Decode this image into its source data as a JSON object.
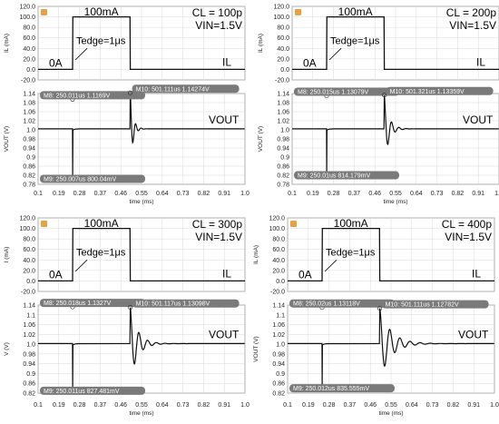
{
  "colors": {
    "plot_bg": "#ffffff",
    "grid": "#d8d8d8",
    "trace": "#111111",
    "marker_box": "#7a7a7a",
    "marker_text": "#ffffff",
    "warn_icon": "#e8a040"
  },
  "icons": {
    "panel_icon": "warning-icon"
  },
  "chart_data": [
    {
      "type": "line",
      "cl_label": "CL = 100p",
      "vin_label": "VIN=1.5V",
      "il": {
        "ylabel": "IL (mA)",
        "yticks": [
          "120.0",
          "100.0",
          "80.0",
          "60.0",
          "40.0",
          "20.0",
          "0.0",
          "-20.0"
        ],
        "ylim": [
          -20,
          120
        ],
        "points": [
          [
            0.1,
            0
          ],
          [
            0.25,
            0
          ],
          [
            0.251,
            100
          ],
          [
            0.5,
            100
          ],
          [
            0.501,
            0
          ],
          [
            1.0,
            0
          ]
        ],
        "annotations": {
          "top": "100mA",
          "zero": "0A",
          "edge": "Tedge=1μs",
          "trace": "IL"
        }
      },
      "vout": {
        "ylabel": "VOUT (V)",
        "yticks": [
          "1.14",
          "1.08",
          "1.06",
          "1.02",
          "1.0",
          "0.98",
          "0.94",
          "0.9",
          "0.86",
          "0.82",
          "0.78"
        ],
        "ylim": [
          0.78,
          1.14
        ],
        "baseline": 1.0,
        "trace_label": "VOUT",
        "drop_min": 0.8,
        "ring": {
          "start": 0.501,
          "amplitude": 0.142,
          "period": 0.024,
          "decay": 0.012
        },
        "markers": [
          {
            "label": "M8: 250.011us 1.1169V",
            "x": 0.25,
            "y": 1.117
          },
          {
            "label": "M10: 501.111us 1.14274V",
            "x": 0.501,
            "y": 1.1427
          },
          {
            "label": "M9: 250.007us 800.04mV",
            "x": 0.25,
            "y": 0.8
          }
        ]
      },
      "time_ticks": [
        "0.1",
        "0.19",
        "0.28",
        "0.37",
        "0.46",
        "0.55",
        "0.64",
        "0.73",
        "0.82",
        "0.91",
        "1.0"
      ],
      "time_label": "time (ms)",
      "xlim": [
        0.1,
        1.0
      ]
    },
    {
      "type": "line",
      "cl_label": "CL = 200p",
      "vin_label": "VIN=1.5V",
      "il": {
        "ylabel": "IL (mA)",
        "yticks": [
          "120.0",
          "100.0",
          "80.0",
          "60.0",
          "40.0",
          "20.0",
          "0.0",
          "-20.0"
        ],
        "ylim": [
          -20,
          120
        ],
        "points": [
          [
            0.1,
            0
          ],
          [
            0.25,
            0
          ],
          [
            0.251,
            100
          ],
          [
            0.5,
            100
          ],
          [
            0.501,
            0
          ],
          [
            1.0,
            0
          ]
        ],
        "annotations": {
          "top": "100mA",
          "zero": "0A",
          "edge": "Tedge=1μs",
          "trace": "IL"
        }
      },
      "vout": {
        "ylabel": "VOUT (V)",
        "yticks": [
          "1.14",
          "1.08",
          "1.06",
          "1.02",
          "1.0",
          "0.98",
          "0.94",
          "0.9",
          "0.86",
          "0.82",
          "0.78"
        ],
        "ylim": [
          0.78,
          1.14
        ],
        "baseline": 1.0,
        "trace_label": "VOUT",
        "drop_min": 0.814,
        "ring": {
          "start": 0.501,
          "amplitude": 0.133,
          "period": 0.032,
          "decay": 0.02
        },
        "markers": [
          {
            "label": "M8: 250.015us 1.13079V",
            "x": 0.25,
            "y": 1.131
          },
          {
            "label": "M10: 501.321us 1.13359V",
            "x": 0.501,
            "y": 1.1336
          },
          {
            "label": "M9: 250.01us 814.179mV",
            "x": 0.25,
            "y": 0.814
          }
        ]
      },
      "time_ticks": [
        "0.1",
        "0.19",
        "0.28",
        "0.37",
        "0.46",
        "0.55",
        "0.64",
        "0.73",
        "0.82",
        "0.91",
        "1.0"
      ],
      "time_label": "time (ms)",
      "xlim": [
        0.1,
        1.0
      ]
    },
    {
      "type": "line",
      "cl_label": "CL = 300p",
      "vin_label": "VIN=1.5V",
      "il": {
        "ylabel": "I (mA)",
        "yticks": [
          "120.0",
          "100.0",
          "80.0",
          "60.0",
          "40.0",
          "20.0",
          "0.0",
          "-20.0"
        ],
        "ylim": [
          -20,
          120
        ],
        "points": [
          [
            0.1,
            0
          ],
          [
            0.25,
            0
          ],
          [
            0.251,
            100
          ],
          [
            0.5,
            100
          ],
          [
            0.501,
            0
          ],
          [
            1.0,
            0
          ]
        ],
        "annotations": {
          "top": "100mA",
          "zero": "0A",
          "edge": "Tedge=1μs",
          "trace": "IL"
        }
      },
      "vout": {
        "ylabel": "V (V)",
        "yticks": [
          "1.14",
          "1.1",
          "1.06",
          "1.02",
          "1.0",
          "0.98",
          "0.94",
          "0.9",
          "0.86",
          "0.82"
        ],
        "ylim": [
          0.82,
          1.14
        ],
        "baseline": 1.0,
        "trace_label": "VOUT",
        "drop_min": 0.827,
        "ring": {
          "start": 0.501,
          "amplitude": 0.131,
          "period": 0.038,
          "decay": 0.032
        },
        "markers": [
          {
            "label": "M8: 250.018us 1.1327V",
            "x": 0.25,
            "y": 1.133
          },
          {
            "label": "M10: 501.117us 1.13098V",
            "x": 0.501,
            "y": 1.131
          },
          {
            "label": "M9: 250.011us 827.481mV",
            "x": 0.25,
            "y": 0.827
          }
        ]
      },
      "time_ticks": [
        "0.1",
        "0.19",
        "0.28",
        "0.37",
        "0.46",
        "0.55",
        "0.64",
        "0.73",
        "0.82",
        "0.91",
        "1.0"
      ],
      "time_label": "time (ms)",
      "xlim": [
        0.1,
        1.0
      ]
    },
    {
      "type": "line",
      "cl_label": "CL = 400p",
      "vin_label": "VIN=1.5V",
      "il": {
        "ylabel": "IL (mA)",
        "yticks": [
          "120.0",
          "100.0",
          "80.0",
          "60.0",
          "40.0",
          "20.0",
          "0.0",
          "-20.0"
        ],
        "ylim": [
          -20,
          120
        ],
        "points": [
          [
            0.1,
            0
          ],
          [
            0.25,
            0
          ],
          [
            0.251,
            100
          ],
          [
            0.5,
            100
          ],
          [
            0.501,
            0
          ],
          [
            1.0,
            0
          ]
        ],
        "annotations": {
          "top": "100mA",
          "zero": "0A",
          "edge": "Tedge=1μs",
          "trace": "IL"
        }
      },
      "vout": {
        "ylabel": "VOUT (V)",
        "yticks": [
          "1.14",
          "1.1",
          "1.06",
          "1.02",
          "1.0",
          "0.98",
          "0.94",
          "0.9",
          "0.86",
          "0.82"
        ],
        "ylim": [
          0.82,
          1.14
        ],
        "baseline": 1.0,
        "trace_label": "VOUT",
        "drop_min": 0.836,
        "ring": {
          "start": 0.501,
          "amplitude": 0.128,
          "period": 0.044,
          "decay": 0.048
        },
        "markers": [
          {
            "label": "M8: 250.02us 1.13118V",
            "x": 0.25,
            "y": 1.131
          },
          {
            "label": "M10: 501.111us 1.12782V",
            "x": 0.501,
            "y": 1.128
          },
          {
            "label": "M9: 250.012us 835.555mV",
            "x": 0.25,
            "y": 0.836
          }
        ]
      },
      "time_ticks": [
        "0.1",
        "0.19",
        "0.28",
        "0.37",
        "0.46",
        "0.55",
        "0.64",
        "0.73",
        "0.82",
        "0.91",
        "1.0"
      ],
      "time_label": "time (ms)",
      "xlim": [
        0.1,
        1.0
      ]
    }
  ]
}
